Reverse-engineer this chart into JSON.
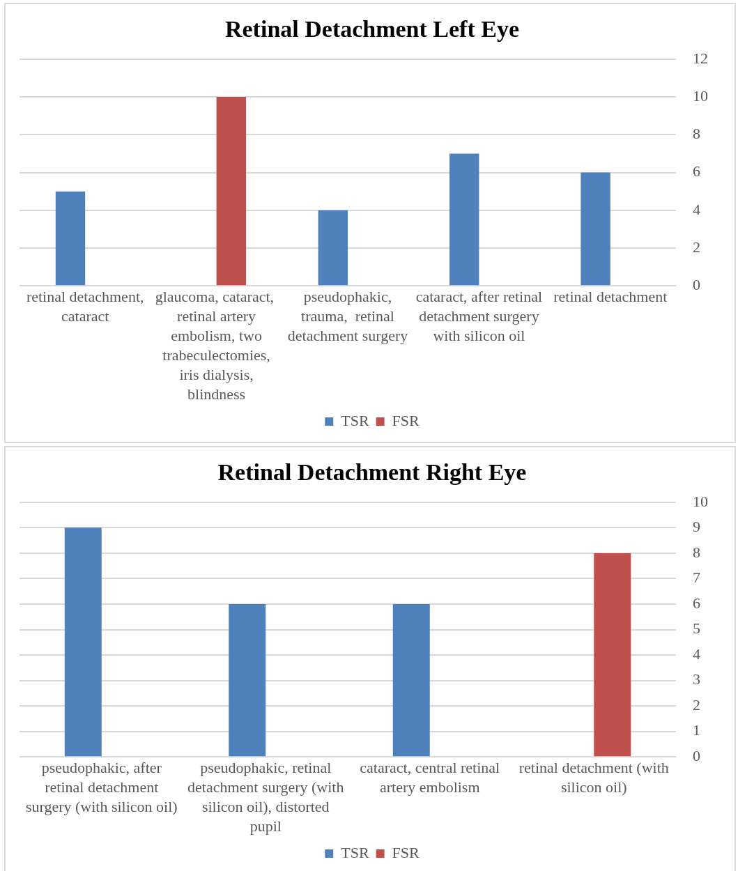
{
  "chart_data": [
    {
      "type": "bar",
      "title": "Retinal Detachment Left Eye",
      "categories": [
        "retinal detachment, cataract",
        "glaucoma, cataract,  retinal artery embolism, two trabeculectomies, iris dialysis, blindness",
        "pseudophakic, trauma,  retinal detachment surgery",
        "cataract, after retinal detachment surgery with silicon oil",
        "retinal detachment"
      ],
      "series": [
        {
          "name": "TSR",
          "color": "#4f81bd",
          "values": [
            5,
            null,
            4,
            7,
            6
          ]
        },
        {
          "name": "FSR",
          "color": "#c0504d",
          "values": [
            null,
            10,
            null,
            null,
            null
          ]
        }
      ],
      "ylim": [
        0,
        12
      ],
      "yticks": [
        0,
        2,
        4,
        6,
        8,
        10,
        12
      ],
      "grid": "y",
      "legend": "bottom"
    },
    {
      "type": "bar",
      "title": "Retinal Detachment Right Eye",
      "categories": [
        "pseudophakic, after retinal detachment surgery (with silicon oil)",
        "pseudophakic, retinal detachment surgery (with silicon oil), distorted pupil",
        "cataract, central retinal artery embolism",
        "retinal detachment (with silicon oil)"
      ],
      "series": [
        {
          "name": "TSR",
          "color": "#4f81bd",
          "values": [
            9,
            6,
            6,
            null
          ]
        },
        {
          "name": "FSR",
          "color": "#c0504d",
          "values": [
            null,
            null,
            null,
            8
          ]
        }
      ],
      "ylim": [
        0,
        10
      ],
      "yticks": [
        0,
        1,
        2,
        3,
        4,
        5,
        6,
        7,
        8,
        9,
        10
      ],
      "grid": "y",
      "legend": "bottom"
    }
  ]
}
